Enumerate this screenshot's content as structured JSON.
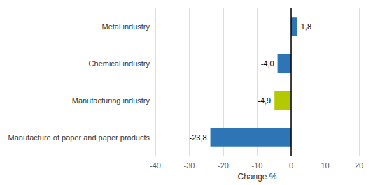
{
  "chart_data": {
    "type": "bar",
    "orientation": "horizontal",
    "categories": [
      "Manufacture of paper and paper products",
      "Manufacturing industry",
      "Chemical industry",
      "Metal industry"
    ],
    "values": [
      -23.8,
      -4.9,
      -4.0,
      1.8
    ],
    "value_labels": [
      "-23,8",
      "-4,9",
      "-4,0",
      "1,8"
    ],
    "data_labels": true,
    "colors": [
      "#2e75b6",
      "#b5c900",
      "#2e75b6",
      "#2e75b6"
    ],
    "xlabel": "Change %",
    "xlim": [
      -40,
      20
    ],
    "xticks": [
      -40,
      -30,
      -20,
      -10,
      0,
      10,
      20
    ],
    "grid": true
  }
}
